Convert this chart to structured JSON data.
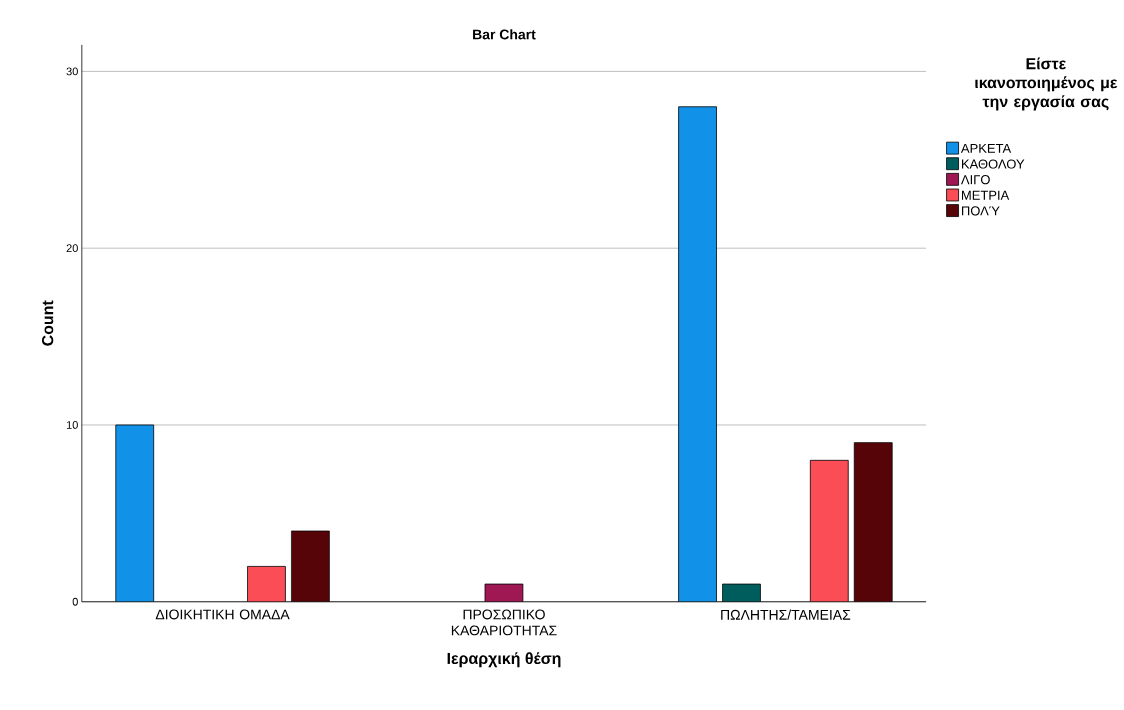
{
  "chart_data": {
    "type": "bar",
    "title": "Bar Chart",
    "xlabel": "Ιεραρχική θέση",
    "ylabel": "Count",
    "legend_title": "Είστε ικανοποιημένος με την εργασία σας",
    "categories": [
      "ΔΙΟΙΚΗΤΙΚΗ ΟΜΑΔΑ",
      "ΠΡΟΣΩΠΙΚΟ ΚΑΘΑΡΙΟΤΗΤΑΣ",
      "ΠΩΛΗΤΗΣ/ΤΑΜΕΙΑΣ"
    ],
    "series": [
      {
        "name": "ΑΡΚΕΤΑ",
        "color": "#1192e8",
        "values": [
          10,
          null,
          28
        ]
      },
      {
        "name": "ΚΑΘΟΛΟΥ",
        "color": "#005d5d",
        "values": [
          null,
          null,
          1
        ]
      },
      {
        "name": "ΛΙΓΟ",
        "color": "#9f1853",
        "values": [
          null,
          1,
          null
        ]
      },
      {
        "name": "ΜΕΤΡΙΑ",
        "color": "#fa4d56",
        "values": [
          2,
          null,
          8
        ]
      },
      {
        "name": "ΠΟΛΎ",
        "color": "#570408",
        "values": [
          4,
          null,
          9
        ]
      }
    ],
    "ylim": [
      0,
      31.5
    ],
    "yticks": [
      0,
      10,
      20,
      30
    ],
    "grid": "y",
    "legend": "top right"
  }
}
